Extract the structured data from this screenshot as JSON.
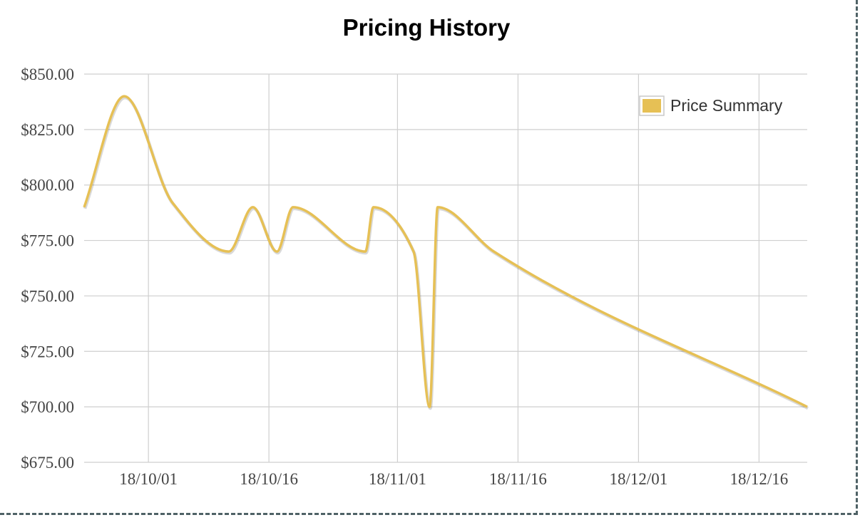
{
  "chart_data": {
    "type": "line",
    "title": "Pricing History",
    "xlabel": "",
    "ylabel": "",
    "x_ticks": [
      "18/10/01",
      "18/10/16",
      "18/11/01",
      "18/11/16",
      "18/12/01",
      "18/12/16"
    ],
    "y_ticks": [
      "$850.00",
      "$825.00",
      "$800.00",
      "$775.00",
      "$750.00",
      "$725.00",
      "$700.00",
      "$675.00"
    ],
    "ylim": [
      675,
      850
    ],
    "xlim": [
      "2018-09-23",
      "2018-12-22"
    ],
    "grid": true,
    "legend_position": "top-right",
    "series": [
      {
        "name": "Price Summary",
        "color": "#e6c055",
        "points": [
          {
            "x": "2018-09-23",
            "y": 790
          },
          {
            "x": "2018-09-28",
            "y": 840
          },
          {
            "x": "2018-10-04",
            "y": 792
          },
          {
            "x": "2018-10-11",
            "y": 770
          },
          {
            "x": "2018-10-14",
            "y": 790
          },
          {
            "x": "2018-10-17",
            "y": 770
          },
          {
            "x": "2018-10-19",
            "y": 790
          },
          {
            "x": "2018-10-28",
            "y": 770
          },
          {
            "x": "2018-10-29",
            "y": 790
          },
          {
            "x": "2018-11-03",
            "y": 770
          },
          {
            "x": "2018-11-05",
            "y": 700
          },
          {
            "x": "2018-11-06",
            "y": 790
          },
          {
            "x": "2018-11-13",
            "y": 770
          },
          {
            "x": "2018-12-22",
            "y": 700
          }
        ]
      }
    ]
  }
}
